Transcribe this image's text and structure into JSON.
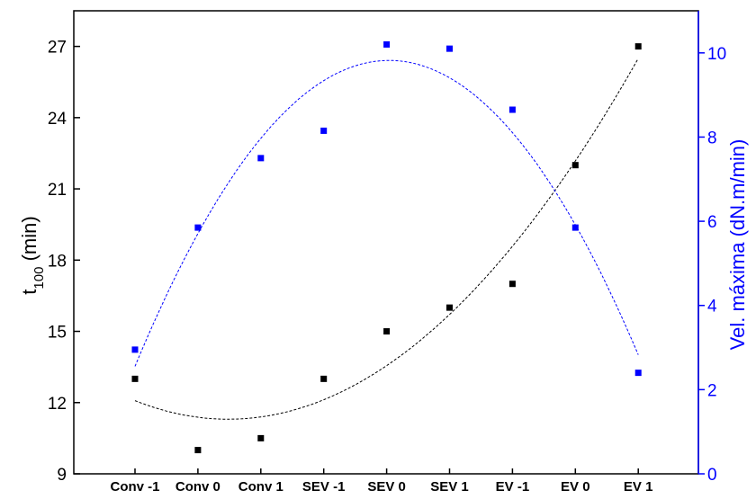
{
  "chart_data": {
    "type": "scatter",
    "categories": [
      "Conv -1",
      "Conv 0",
      "Conv 1",
      "SEV -1",
      "SEV 0",
      "SEV 1",
      "EV -1",
      "EV 0",
      "EV 1"
    ],
    "y_left": {
      "label_main": "t",
      "label_sub": "100",
      "label_unit": " (min)",
      "ylim": [
        9,
        28.5
      ],
      "ticks": [
        9,
        12,
        15,
        18,
        21,
        24,
        27
      ],
      "color": "#000000"
    },
    "y_right": {
      "label": "Vel. máxima (dN.m/min)",
      "ylim": [
        0,
        11
      ],
      "ticks": [
        0,
        2,
        4,
        6,
        8,
        10
      ],
      "color": "#0000ff"
    },
    "series": [
      {
        "axis": "left",
        "color": "#000000",
        "values": [
          13,
          10,
          10.5,
          13,
          15,
          16,
          17,
          22,
          27
        ],
        "trendline": "polynomial-3",
        "trend_color": "#000000"
      },
      {
        "axis": "right",
        "color": "#0000ff",
        "values": [
          2.95,
          5.85,
          7.5,
          8.15,
          10.2,
          10.1,
          8.65,
          5.85,
          2.4
        ],
        "trendline": "polynomial-2",
        "trend_color": "#0000ff"
      }
    ],
    "grid": false,
    "legend": "none"
  }
}
